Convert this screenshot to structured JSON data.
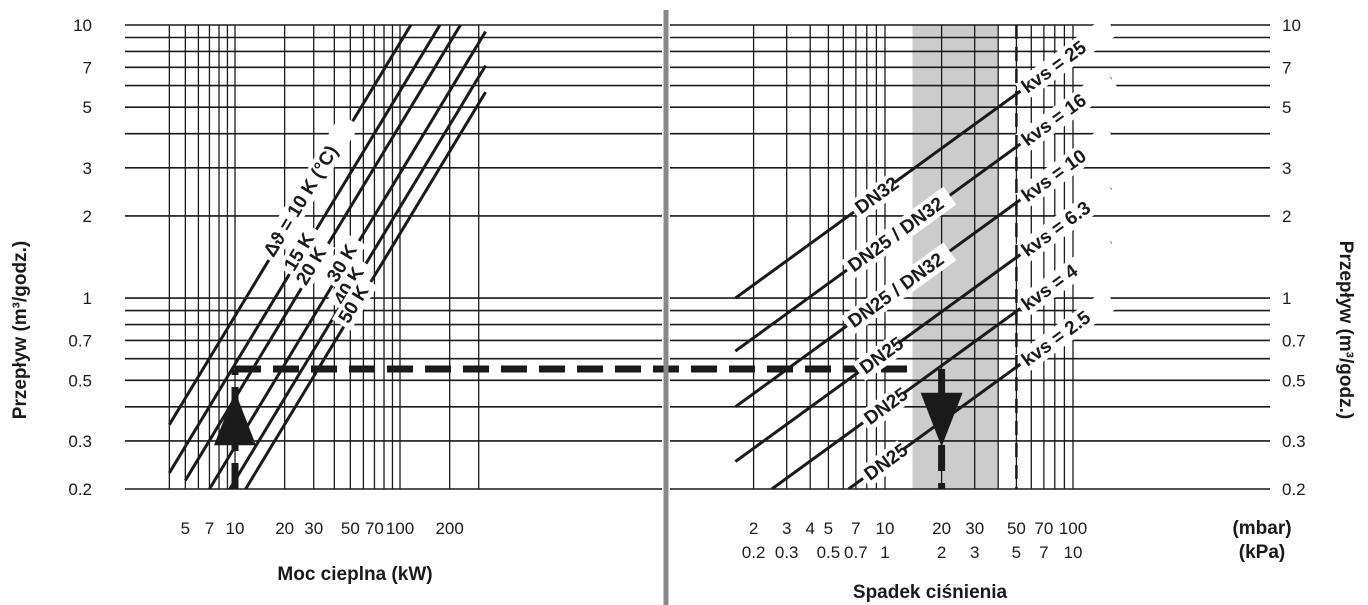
{
  "chart_data": [
    {
      "type": "line",
      "title": "",
      "xlabel": "Moc cieplna (kW)",
      "ylabel": "Przepływ (m³/godz.)",
      "xscale": "log",
      "yscale": "log",
      "xlim": [
        4,
        330
      ],
      "ylim": [
        0.2,
        10
      ],
      "xticks": [
        "5",
        "7",
        "10",
        "20",
        "30",
        "50",
        "70",
        "100",
        "200"
      ],
      "yticks": [
        "10",
        "7",
        "5",
        "3",
        "2",
        "1",
        "0.7",
        "0.5",
        "0.3",
        "0.2"
      ],
      "series": [
        {
          "name": "Δϑ = 10 K (°C)",
          "x": [
            4,
            200
          ],
          "y": [
            0.344,
            17.2
          ]
        },
        {
          "name": "15 K",
          "x": [
            4,
            330
          ],
          "y": [
            0.229,
            18.9
          ]
        },
        {
          "name": "20 K",
          "x": [
            5,
            330
          ],
          "y": [
            0.215,
            14.2
          ]
        },
        {
          "name": "30 K",
          "x": [
            7,
            330
          ],
          "y": [
            0.2,
            9.46
          ]
        },
        {
          "name": "40 K",
          "x": [
            9.3,
            330
          ],
          "y": [
            0.2,
            7.1
          ]
        },
        {
          "name": "50 K",
          "x": [
            11.6,
            330
          ],
          "y": [
            0.2,
            5.68
          ]
        }
      ],
      "annotation": {
        "type": "example-path",
        "power_kW": 10,
        "flow_m3h": 0.55
      },
      "grid": true
    },
    {
      "type": "line",
      "title": "",
      "xlabel": "Spadek ciśnienia",
      "ylabel": "Przepływ (m³/godz.)",
      "xscale": "log",
      "yscale": "log",
      "xlim": [
        1.5,
        170
      ],
      "ylim": [
        0.2,
        10
      ],
      "x_units": [
        "(mbar)",
        "(kPa)"
      ],
      "xticks_mbar": [
        "2",
        "3",
        "4",
        "5",
        "7",
        "10",
        "20",
        "30",
        "50",
        "70",
        "100"
      ],
      "xticks_kpa": [
        "0.2",
        "0.3",
        "0.5",
        "0.7",
        "1",
        "2",
        "3",
        "5",
        "7",
        "10"
      ],
      "yticks": [
        "10",
        "7",
        "5",
        "3",
        "2",
        "1",
        "0.7",
        "0.5",
        "0.3",
        "0.2"
      ],
      "recommended_band_mbar": [
        14,
        40
      ],
      "series": [
        {
          "kvs_label": "kvs = 25",
          "valve": "DN32",
          "kvs": 25,
          "x": [
            1.6,
            160
          ],
          "y": [
            1.0,
            10.0
          ]
        },
        {
          "kvs_label": "kvs = 16",
          "valve": "DN25 / DN32",
          "kvs": 16,
          "x": [
            1.6,
            160
          ],
          "y": [
            0.64,
            6.4
          ]
        },
        {
          "kvs_label": "kvs = 10",
          "valve": "DN25 / DN32",
          "kvs": 10,
          "x": [
            1.6,
            160
          ],
          "y": [
            0.4,
            4.0
          ]
        },
        {
          "kvs_label": "kvs = 6.3",
          "valve": "DN25",
          "kvs": 6.3,
          "x": [
            1.6,
            160
          ],
          "y": [
            0.252,
            2.52
          ]
        },
        {
          "kvs_label": "kvs = 4",
          "valve": "DN25",
          "kvs": 4,
          "x": [
            2.5,
            160
          ],
          "y": [
            0.2,
            1.6
          ]
        },
        {
          "kvs_label": "kvs = 2.5",
          "valve": "DN25",
          "kvs": 2.5,
          "x": [
            6.4,
            160
          ],
          "y": [
            0.2,
            1.0
          ]
        }
      ],
      "annotation": {
        "type": "example-path",
        "flow_m3h": 0.55,
        "pressure_drop_mbar": 20
      },
      "grid": true
    }
  ]
}
